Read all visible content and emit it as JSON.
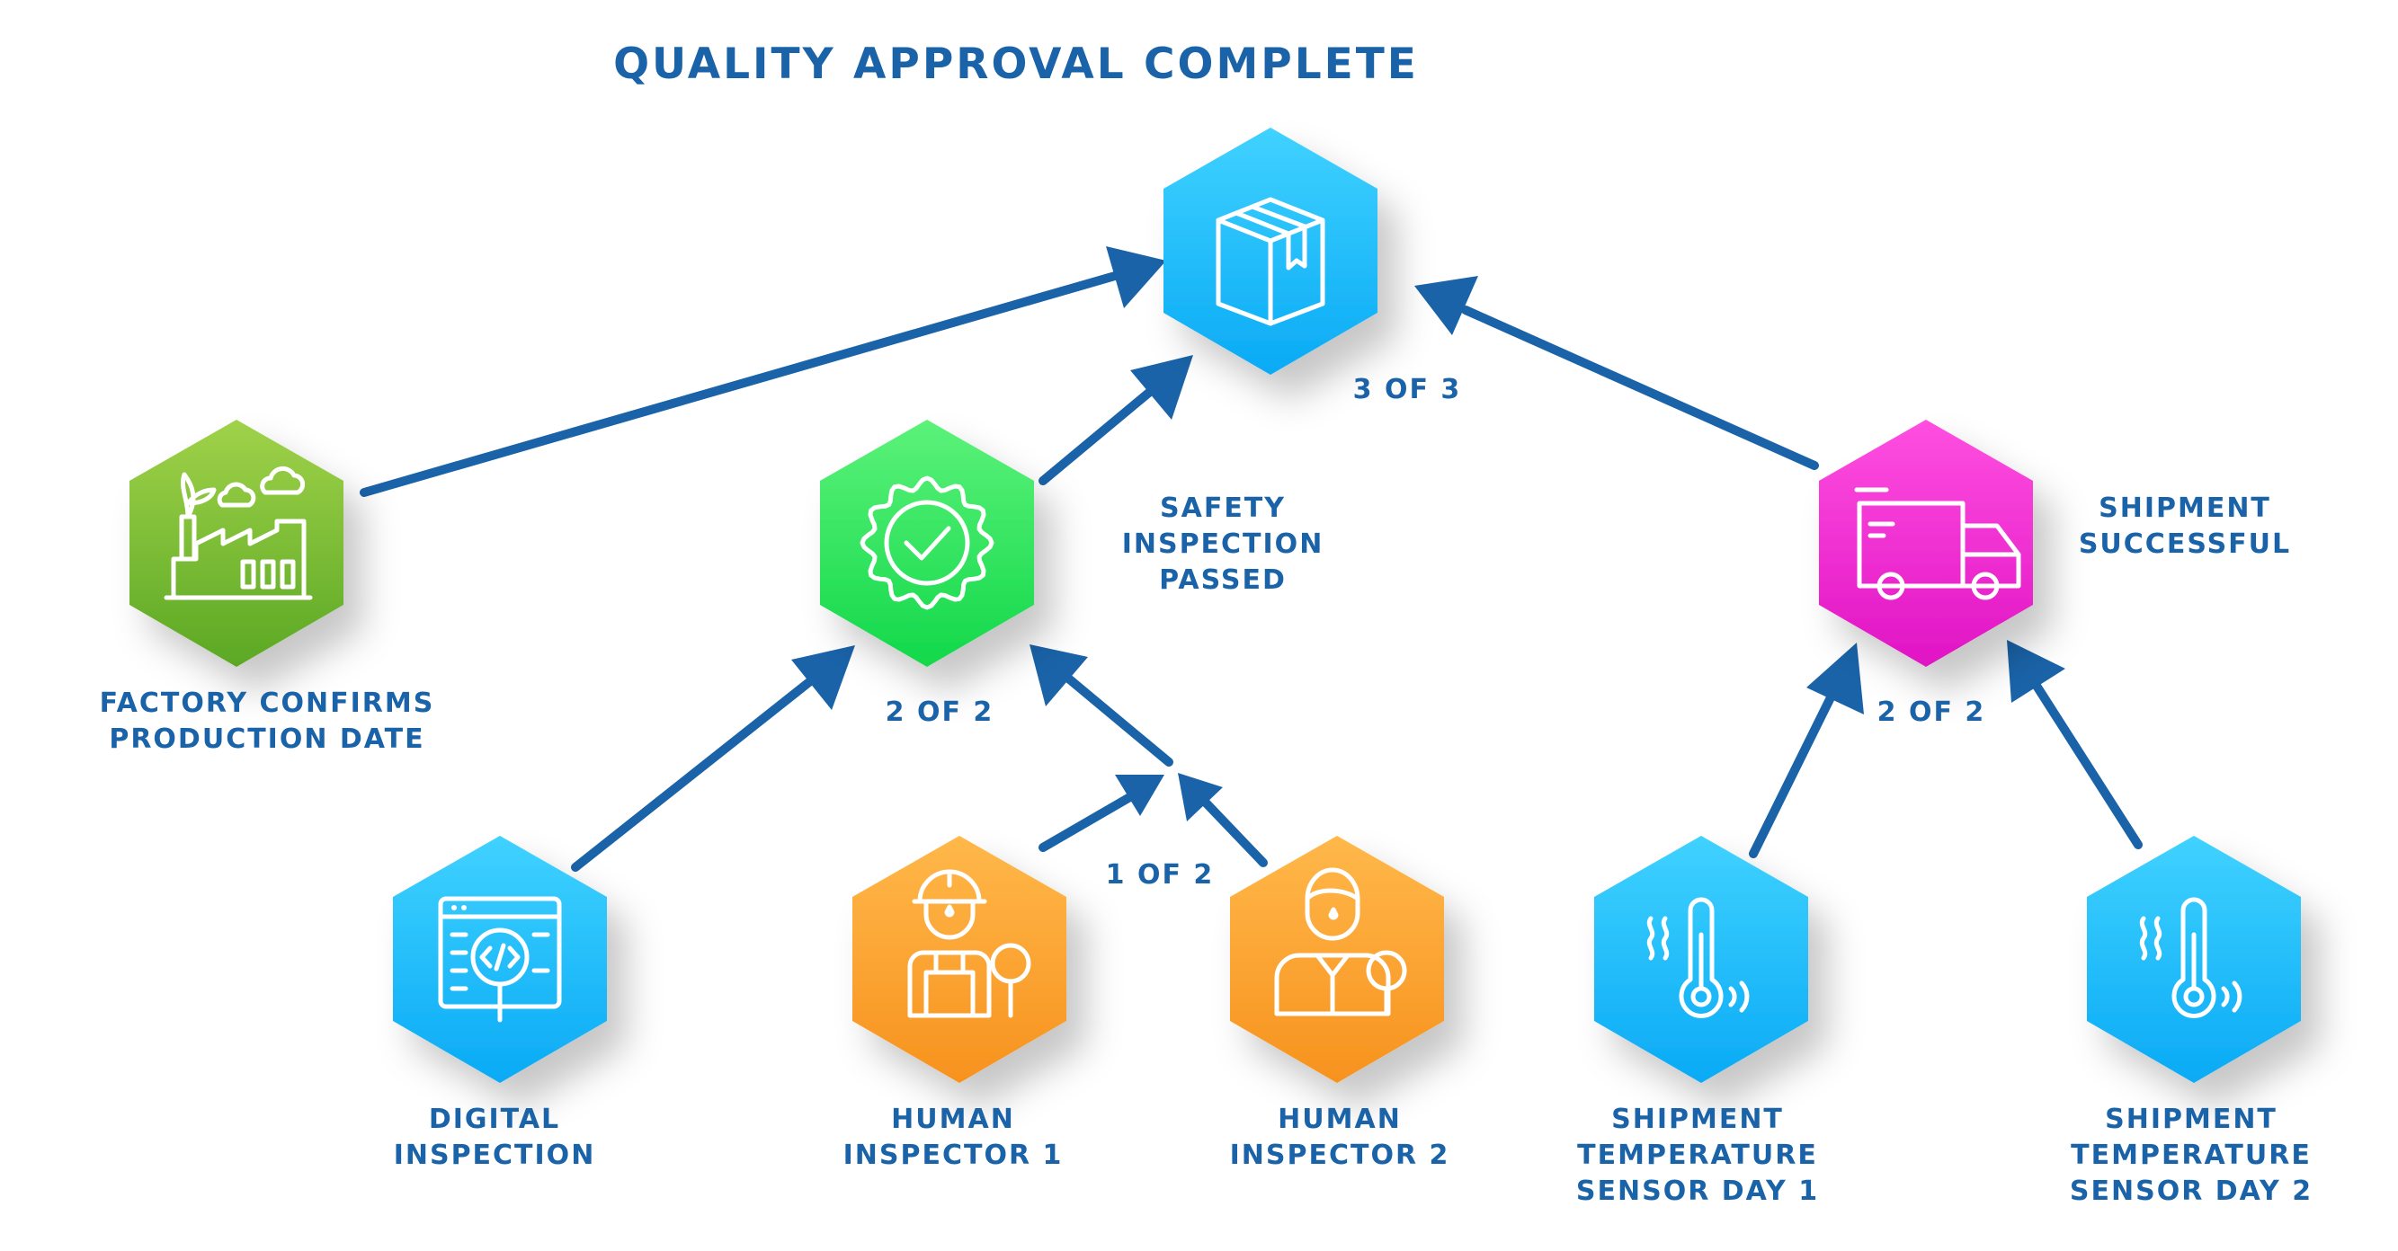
{
  "title": "QUALITY APPROVAL COMPLETE",
  "colors": {
    "text": "#1a63a8",
    "arrow": "#1a63a8",
    "cyan_top": "#40d2ff",
    "cyan_bottom": "#0aaaf5",
    "green_top": "#a0d24a",
    "green_bottom": "#5ba824",
    "bright_green_top": "#5cf27a",
    "bright_green_bottom": "#12d84a",
    "orange_top": "#ffb84a",
    "orange_bottom": "#f7921e",
    "magenta_top": "#ff4fe0",
    "magenta_bottom": "#e014c4"
  },
  "nodes": {
    "quality": {
      "icon": "package-box-icon",
      "label_lines": []
    },
    "factory": {
      "icon": "factory-icon",
      "label_lines": [
        "FACTORY CONFIRMS",
        "PRODUCTION DATE"
      ]
    },
    "safety": {
      "icon": "approval-badge-icon",
      "label_lines": [
        "SAFETY",
        "INSPECTION",
        "PASSED"
      ]
    },
    "shipment": {
      "icon": "delivery-truck-icon",
      "label_lines": [
        "SHIPMENT",
        "SUCCESSFUL"
      ]
    },
    "digital": {
      "icon": "code-inspection-icon",
      "label_lines": [
        "DIGITAL",
        "INSPECTION"
      ]
    },
    "human1": {
      "icon": "inspector-helmet-icon",
      "label_lines": [
        "HUMAN",
        "INSPECTOR 1"
      ]
    },
    "human2": {
      "icon": "inspector-magnifier-icon",
      "label_lines": [
        "HUMAN",
        "INSPECTOR 2"
      ]
    },
    "sensor1": {
      "icon": "thermometer-icon",
      "label_lines": [
        "SHIPMENT",
        "TEMPERATURE",
        "SENSOR DAY 1"
      ]
    },
    "sensor2": {
      "icon": "thermometer-icon",
      "label_lines": [
        "SHIPMENT",
        "TEMPERATURE",
        "SENSOR DAY 2"
      ]
    }
  },
  "thresholds": {
    "quality": "3 OF 3",
    "safety": "2 OF 2",
    "shipment": "2 OF 2",
    "human": "1 OF 2"
  },
  "edges": [
    {
      "from": "factory",
      "to": "quality"
    },
    {
      "from": "safety",
      "to": "quality"
    },
    {
      "from": "shipment",
      "to": "quality"
    },
    {
      "from": "digital",
      "to": "safety"
    },
    {
      "from": "human-group",
      "to": "safety"
    },
    {
      "from": "human1",
      "to": "human-group"
    },
    {
      "from": "human2",
      "to": "human-group"
    },
    {
      "from": "sensor1",
      "to": "shipment"
    },
    {
      "from": "sensor2",
      "to": "shipment"
    }
  ]
}
